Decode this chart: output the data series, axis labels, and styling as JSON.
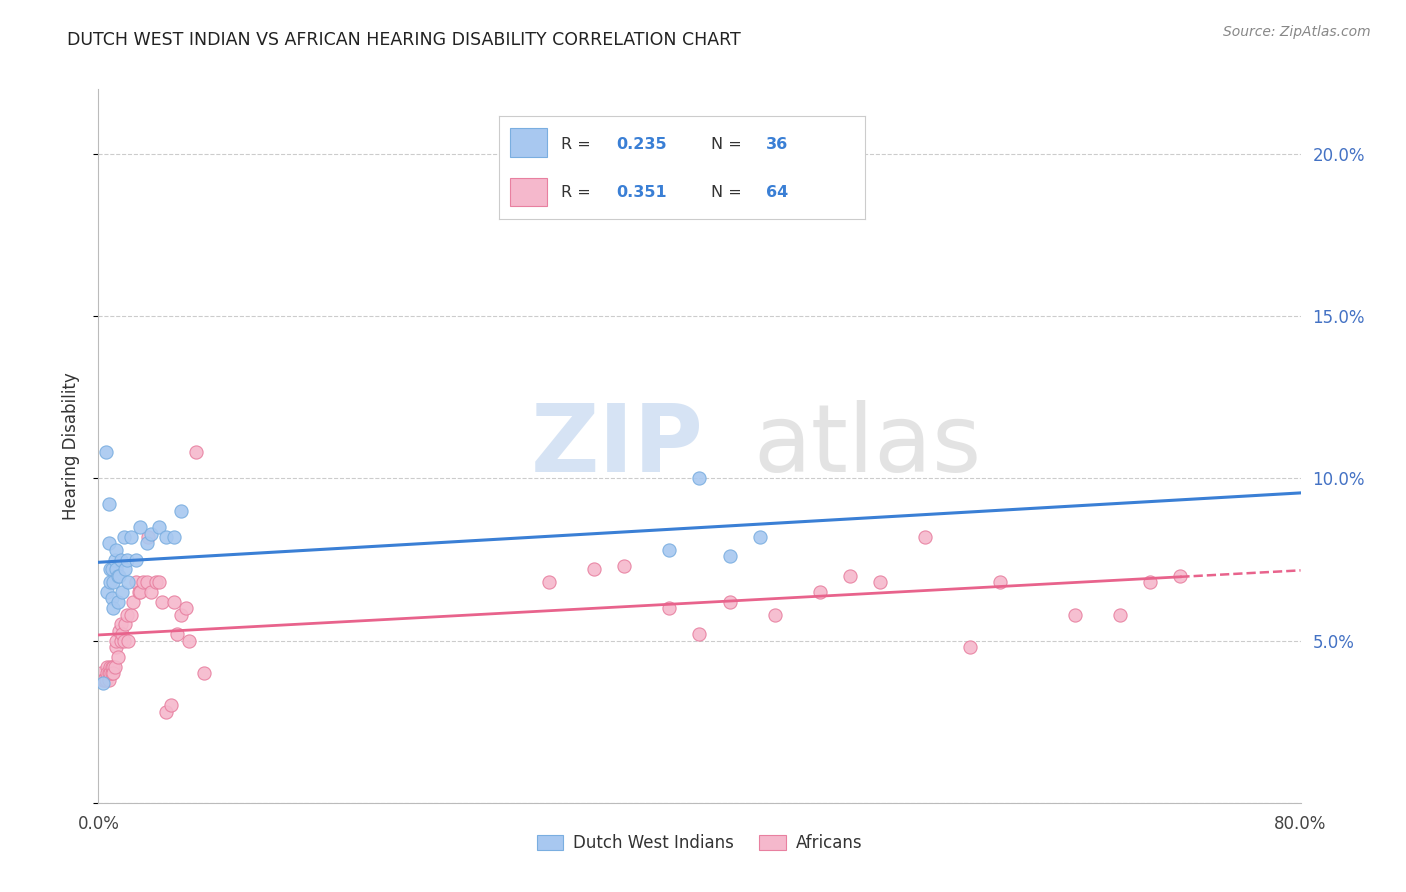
{
  "title": "DUTCH WEST INDIAN VS AFRICAN HEARING DISABILITY CORRELATION CHART",
  "source": "Source: ZipAtlas.com",
  "ylabel": "Hearing Disability",
  "xlim": [
    0.0,
    0.8
  ],
  "ylim": [
    0.0,
    0.22
  ],
  "yticks": [
    0.0,
    0.05,
    0.1,
    0.15,
    0.2
  ],
  "yticklabels": [
    "",
    "5.0%",
    "10.0%",
    "15.0%",
    "20.0%"
  ],
  "right_axis_color": "#4472C4",
  "blue_color": "#A8C8F0",
  "blue_edge_color": "#7AAEE0",
  "pink_color": "#F5B8CC",
  "pink_edge_color": "#E880A0",
  "blue_line_color": "#3A7FD5",
  "pink_line_color": "#E8638C",
  "dutch_x": [
    0.003,
    0.005,
    0.006,
    0.007,
    0.007,
    0.008,
    0.008,
    0.009,
    0.009,
    0.01,
    0.01,
    0.011,
    0.012,
    0.012,
    0.013,
    0.013,
    0.014,
    0.015,
    0.016,
    0.017,
    0.018,
    0.019,
    0.02,
    0.022,
    0.025,
    0.028,
    0.032,
    0.035,
    0.04,
    0.045,
    0.05,
    0.055,
    0.38,
    0.4,
    0.42,
    0.44
  ],
  "dutch_y": [
    0.037,
    0.108,
    0.065,
    0.092,
    0.08,
    0.072,
    0.068,
    0.072,
    0.063,
    0.068,
    0.06,
    0.075,
    0.072,
    0.078,
    0.062,
    0.07,
    0.07,
    0.075,
    0.065,
    0.082,
    0.072,
    0.075,
    0.068,
    0.082,
    0.075,
    0.085,
    0.08,
    0.083,
    0.085,
    0.082,
    0.082,
    0.09,
    0.078,
    0.1,
    0.076,
    0.082
  ],
  "african_x": [
    0.002,
    0.003,
    0.004,
    0.005,
    0.006,
    0.006,
    0.007,
    0.007,
    0.008,
    0.008,
    0.009,
    0.009,
    0.01,
    0.01,
    0.011,
    0.012,
    0.012,
    0.013,
    0.014,
    0.015,
    0.015,
    0.016,
    0.017,
    0.018,
    0.019,
    0.02,
    0.022,
    0.023,
    0.025,
    0.027,
    0.028,
    0.03,
    0.032,
    0.033,
    0.035,
    0.038,
    0.04,
    0.042,
    0.045,
    0.048,
    0.05,
    0.052,
    0.055,
    0.058,
    0.06,
    0.065,
    0.07,
    0.3,
    0.33,
    0.35,
    0.38,
    0.4,
    0.42,
    0.45,
    0.48,
    0.5,
    0.52,
    0.55,
    0.58,
    0.6,
    0.65,
    0.68,
    0.7,
    0.72
  ],
  "african_y": [
    0.04,
    0.038,
    0.038,
    0.038,
    0.042,
    0.04,
    0.04,
    0.038,
    0.042,
    0.04,
    0.04,
    0.042,
    0.042,
    0.04,
    0.042,
    0.048,
    0.05,
    0.045,
    0.053,
    0.05,
    0.055,
    0.052,
    0.05,
    0.055,
    0.058,
    0.05,
    0.058,
    0.062,
    0.068,
    0.065,
    0.065,
    0.068,
    0.068,
    0.082,
    0.065,
    0.068,
    0.068,
    0.062,
    0.028,
    0.03,
    0.062,
    0.052,
    0.058,
    0.06,
    0.05,
    0.108,
    0.04,
    0.068,
    0.072,
    0.073,
    0.06,
    0.052,
    0.062,
    0.058,
    0.065,
    0.07,
    0.068,
    0.082,
    0.048,
    0.068,
    0.058,
    0.058,
    0.068,
    0.07
  ],
  "legend_r1": "R = 0.235",
  "legend_n1": "N = 36",
  "legend_r2": "R = 0.351",
  "legend_n2": "N = 64"
}
